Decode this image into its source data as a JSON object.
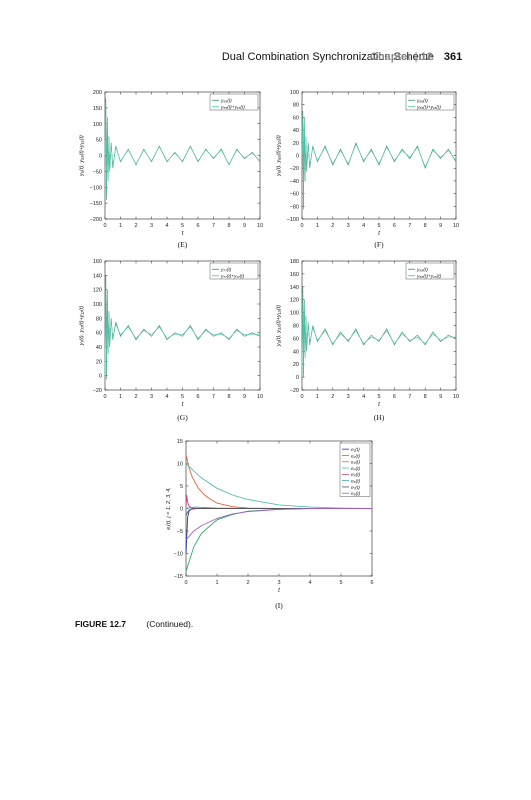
{
  "header": {
    "running_title": "Dual Combination Synchronization Scheme",
    "chapter_label": "Chapter",
    "separator": "|",
    "chapter_number": "12",
    "page_number": "361"
  },
  "caption": {
    "label": "FIGURE 12.7",
    "text": "(Continued)."
  },
  "chart_data": [
    {
      "id": "E",
      "type": "line",
      "panel_label": "(E)",
      "xlabel": "t",
      "ylabel": "y₅(t), y₅₅(t)+y₁₅(t)",
      "xlim": [
        0,
        10
      ],
      "ylim": [
        -200,
        200
      ],
      "xticks": [
        0,
        1,
        2,
        3,
        4,
        5,
        6,
        7,
        8,
        9,
        10
      ],
      "yticks": [
        -200,
        -150,
        -100,
        -50,
        0,
        50,
        100,
        150,
        200
      ],
      "legend": [
        "y₅₅(t)",
        "y₅₅(t)+y₁₅(t)"
      ],
      "legend_position": "top-right",
      "series": [
        {
          "name": "y₅₅(t)",
          "color": "#3c8f73",
          "x": [
            0,
            0.05,
            0.1,
            0.15,
            0.2,
            0.25,
            0.3,
            0.4,
            0.5,
            0.7,
            1,
            1.5,
            2,
            2.5,
            3,
            3.5,
            4,
            4.5,
            5,
            5.5,
            6,
            6.5,
            7,
            7.5,
            8,
            8.5,
            9,
            9.5,
            10
          ],
          "y": [
            0,
            180,
            -140,
            120,
            -80,
            60,
            -50,
            40,
            -40,
            30,
            -20,
            20,
            -30,
            20,
            -20,
            30,
            -20,
            10,
            -20,
            30,
            -20,
            20,
            -10,
            20,
            -30,
            20,
            -10,
            10,
            -20
          ]
        },
        {
          "name": "y₅₅(t)+y₁₅(t)",
          "color": "#4ec0a8",
          "x": [
            0,
            0.05,
            0.1,
            0.15,
            0.2,
            0.25,
            0.3,
            0.4,
            0.5,
            0.7,
            1,
            1.5,
            2,
            2.5,
            3,
            3.5,
            4,
            4.5,
            5,
            5.5,
            6,
            6.5,
            7,
            7.5,
            8,
            8.5,
            9,
            9.5,
            10
          ],
          "y": [
            0,
            170,
            -130,
            110,
            -75,
            55,
            -45,
            35,
            -35,
            28,
            -18,
            18,
            -28,
            18,
            -18,
            28,
            -18,
            8,
            -18,
            28,
            -18,
            18,
            -8,
            18,
            -28,
            18,
            -8,
            8,
            -18
          ]
        }
      ]
    },
    {
      "id": "F",
      "type": "line",
      "panel_label": "(F)",
      "xlabel": "t",
      "ylabel": "y₆(t), y₆₆(t)+y₁₆(t)",
      "xlim": [
        0,
        10
      ],
      "ylim": [
        -100,
        100
      ],
      "xticks": [
        0,
        1,
        2,
        3,
        4,
        5,
        6,
        7,
        8,
        9,
        10
      ],
      "yticks": [
        -100,
        -80,
        -60,
        -40,
        -20,
        0,
        20,
        40,
        60,
        80,
        100
      ],
      "legend": [
        "y₆₆(t)",
        "y₆₆(t)+y₁₆(t)"
      ],
      "legend_position": "top-right",
      "series": [
        {
          "name": "y₆₆(t)",
          "color": "#3c8f73",
          "x": [
            0,
            0.05,
            0.1,
            0.15,
            0.2,
            0.25,
            0.3,
            0.4,
            0.5,
            0.7,
            1,
            1.5,
            2,
            2.5,
            3,
            3.5,
            4,
            4.5,
            5,
            5.5,
            6,
            6.5,
            7,
            7.5,
            8,
            8.5,
            9,
            9.5,
            10
          ],
          "y": [
            0,
            70,
            -85,
            60,
            -40,
            30,
            -25,
            20,
            -20,
            15,
            -10,
            15,
            -15,
            10,
            -15,
            20,
            -10,
            10,
            -15,
            15,
            -10,
            10,
            -5,
            15,
            -20,
            10,
            -5,
            10,
            -10
          ]
        },
        {
          "name": "y₆₆(t)+y₁₆(t)",
          "color": "#4ec0a8",
          "x": [
            0,
            0.05,
            0.1,
            0.15,
            0.2,
            0.25,
            0.3,
            0.4,
            0.5,
            0.7,
            1,
            1.5,
            2,
            2.5,
            3,
            3.5,
            4,
            4.5,
            5,
            5.5,
            6,
            6.5,
            7,
            7.5,
            8,
            8.5,
            9,
            9.5,
            10
          ],
          "y": [
            0,
            65,
            -80,
            55,
            -38,
            28,
            -22,
            18,
            -18,
            13,
            -8,
            13,
            -13,
            8,
            -13,
            18,
            -8,
            8,
            -13,
            13,
            -8,
            8,
            -3,
            13,
            -18,
            8,
            -3,
            8,
            -8
          ]
        }
      ]
    },
    {
      "id": "G",
      "type": "line",
      "panel_label": "(G)",
      "xlabel": "t",
      "ylabel": "y₇(t), y₇₇(t)+y₁₇(t)",
      "xlim": [
        0,
        10
      ],
      "ylim": [
        -20,
        160
      ],
      "xticks": [
        0,
        1,
        2,
        3,
        4,
        5,
        6,
        7,
        8,
        9,
        10
      ],
      "yticks": [
        -20,
        0,
        20,
        40,
        60,
        80,
        100,
        120,
        140,
        160
      ],
      "legend": [
        "y₇₇(t)",
        "y₇₇(t)+y₁₇(t)"
      ],
      "legend_position": "top-right",
      "series": [
        {
          "name": "y₇₇(t)",
          "color": "#3c8f73",
          "x": [
            0,
            0.05,
            0.1,
            0.15,
            0.2,
            0.25,
            0.3,
            0.4,
            0.5,
            0.7,
            1,
            1.5,
            2,
            2.5,
            3,
            3.5,
            4,
            4.5,
            5,
            5.5,
            6,
            6.5,
            7,
            7.5,
            8,
            8.5,
            9,
            9.5,
            10
          ],
          "y": [
            0,
            140,
            -5,
            120,
            30,
            90,
            40,
            80,
            50,
            75,
            55,
            70,
            50,
            65,
            55,
            70,
            50,
            60,
            55,
            70,
            50,
            65,
            55,
            60,
            50,
            65,
            55,
            60,
            55
          ]
        },
        {
          "name": "y₇₇(t)+y₁₇(t)",
          "color": "#4ec0a8",
          "x": [
            0,
            0.05,
            0.1,
            0.15,
            0.2,
            0.25,
            0.3,
            0.4,
            0.5,
            0.7,
            1,
            1.5,
            2,
            2.5,
            3,
            3.5,
            4,
            4.5,
            5,
            5.5,
            6,
            6.5,
            7,
            7.5,
            8,
            8.5,
            9,
            9.5,
            10
          ],
          "y": [
            0,
            130,
            5,
            115,
            35,
            85,
            45,
            78,
            52,
            72,
            57,
            68,
            52,
            63,
            57,
            68,
            52,
            58,
            57,
            68,
            52,
            63,
            57,
            58,
            52,
            63,
            57,
            58,
            57
          ]
        }
      ]
    },
    {
      "id": "H",
      "type": "line",
      "panel_label": "(H)",
      "xlabel": "t",
      "ylabel": "y₈(t), y₈₈(t)+y₁₈(t)",
      "xlim": [
        0,
        10
      ],
      "ylim": [
        -20,
        180
      ],
      "xticks": [
        0,
        1,
        2,
        3,
        4,
        5,
        6,
        7,
        8,
        9,
        10
      ],
      "yticks": [
        -20,
        0,
        20,
        40,
        60,
        80,
        100,
        120,
        140,
        160,
        180
      ],
      "legend": [
        "y₈₈(t)",
        "y₈₈(t)+y₁₈(t)"
      ],
      "legend_position": "top-right",
      "series": [
        {
          "name": "y₈₈(t)",
          "color": "#3c8f73",
          "x": [
            0,
            0.05,
            0.1,
            0.15,
            0.2,
            0.25,
            0.3,
            0.4,
            0.5,
            0.7,
            1,
            1.5,
            2,
            2.5,
            3,
            3.5,
            4,
            4.5,
            5,
            5.5,
            6,
            6.5,
            7,
            7.5,
            8,
            8.5,
            9,
            9.5,
            10
          ],
          "y": [
            0,
            140,
            0,
            120,
            30,
            95,
            40,
            85,
            50,
            80,
            55,
            75,
            50,
            70,
            55,
            75,
            50,
            65,
            55,
            75,
            50,
            70,
            55,
            65,
            50,
            70,
            55,
            65,
            60
          ]
        },
        {
          "name": "y₈₈(t)+y₁₈(t)",
          "color": "#4ec0a8",
          "x": [
            0,
            0.05,
            0.1,
            0.15,
            0.2,
            0.25,
            0.3,
            0.4,
            0.5,
            0.7,
            1,
            1.5,
            2,
            2.5,
            3,
            3.5,
            4,
            4.5,
            5,
            5.5,
            6,
            6.5,
            7,
            7.5,
            8,
            8.5,
            9,
            9.5,
            10
          ],
          "y": [
            0,
            130,
            10,
            115,
            35,
            90,
            45,
            82,
            52,
            77,
            57,
            72,
            52,
            67,
            57,
            72,
            52,
            62,
            57,
            72,
            52,
            67,
            57,
            62,
            52,
            67,
            57,
            62,
            62
          ]
        }
      ]
    },
    {
      "id": "I",
      "type": "line",
      "panel_label": "(I)",
      "xlabel": "t",
      "ylabel": "eⱼ(t), j = 1, 2, 3, 4,",
      "xlim": [
        0,
        6
      ],
      "ylim": [
        -15,
        15
      ],
      "xticks": [
        0,
        1,
        2,
        3,
        4,
        5,
        6
      ],
      "yticks": [
        -15,
        -10,
        -5,
        0,
        5,
        10,
        15
      ],
      "legend": [
        "e₁(t)",
        "e₂(t)",
        "e₃(t)",
        "e₄(t)",
        "e₅(t)",
        "e₆(t)",
        "e₇(t)",
        "e₈(t)"
      ],
      "legend_position": "top-right",
      "series": [
        {
          "name": "e₁(t)",
          "color": "#1f3aa6",
          "x": [
            0,
            0.05,
            0.1,
            0.2,
            0.3,
            0.5,
            1,
            2,
            3,
            4,
            5,
            6
          ],
          "y": [
            -10,
            -2,
            -0.5,
            -0.1,
            0,
            0,
            0,
            0,
            0,
            0,
            0,
            0
          ]
        },
        {
          "name": "e₂(t)",
          "color": "#2aa876",
          "x": [
            0,
            0.25,
            0.5,
            1,
            1.5,
            2,
            3,
            4,
            5,
            6
          ],
          "y": [
            -14,
            -8.5,
            -5.5,
            -2.5,
            -1.3,
            -0.6,
            -0.15,
            0,
            0,
            0
          ]
        },
        {
          "name": "e₃(t)",
          "color": "#e2643c",
          "x": [
            0,
            0.1,
            0.2,
            0.4,
            0.6,
            0.8,
            1,
            1.5,
            2,
            3,
            6
          ],
          "y": [
            12,
            9,
            7,
            4.5,
            3,
            2,
            1.2,
            0.4,
            0.1,
            0,
            0
          ]
        },
        {
          "name": "e₄(t)",
          "color": "#4ec0b0",
          "x": [
            0,
            0.25,
            0.5,
            1,
            1.5,
            2,
            3,
            4,
            5,
            6
          ],
          "y": [
            10,
            8.3,
            6.8,
            4.5,
            3,
            2,
            0.8,
            0.3,
            0.1,
            0
          ]
        },
        {
          "name": "e₅(t)",
          "color": "#c04080",
          "x": [
            0,
            0.02,
            0.05,
            0.1,
            0.2,
            0.3,
            0.5,
            1,
            6
          ],
          "y": [
            0,
            3,
            1.5,
            0.5,
            0.1,
            0,
            0,
            0,
            0
          ]
        },
        {
          "name": "e₆(t)",
          "color": "#3aa0c0",
          "x": [
            0,
            0.3,
            0.6,
            1,
            2,
            3,
            6
          ],
          "y": [
            0,
            0.3,
            0.2,
            0.1,
            0,
            0,
            0
          ]
        },
        {
          "name": "e₇(t)",
          "color": "#555555",
          "x": [
            0,
            0.05,
            0.1,
            0.2,
            0.4,
            1,
            6
          ],
          "y": [
            -1.5,
            -0.8,
            -0.4,
            -0.1,
            0,
            0,
            0
          ]
        },
        {
          "name": "e₈(t)",
          "color": "#a060c0",
          "x": [
            0,
            0.25,
            0.5,
            1,
            1.5,
            2,
            3,
            4,
            6
          ],
          "y": [
            -7,
            -5,
            -3.8,
            -2.2,
            -1.2,
            -0.7,
            -0.2,
            0,
            0
          ]
        }
      ]
    }
  ]
}
